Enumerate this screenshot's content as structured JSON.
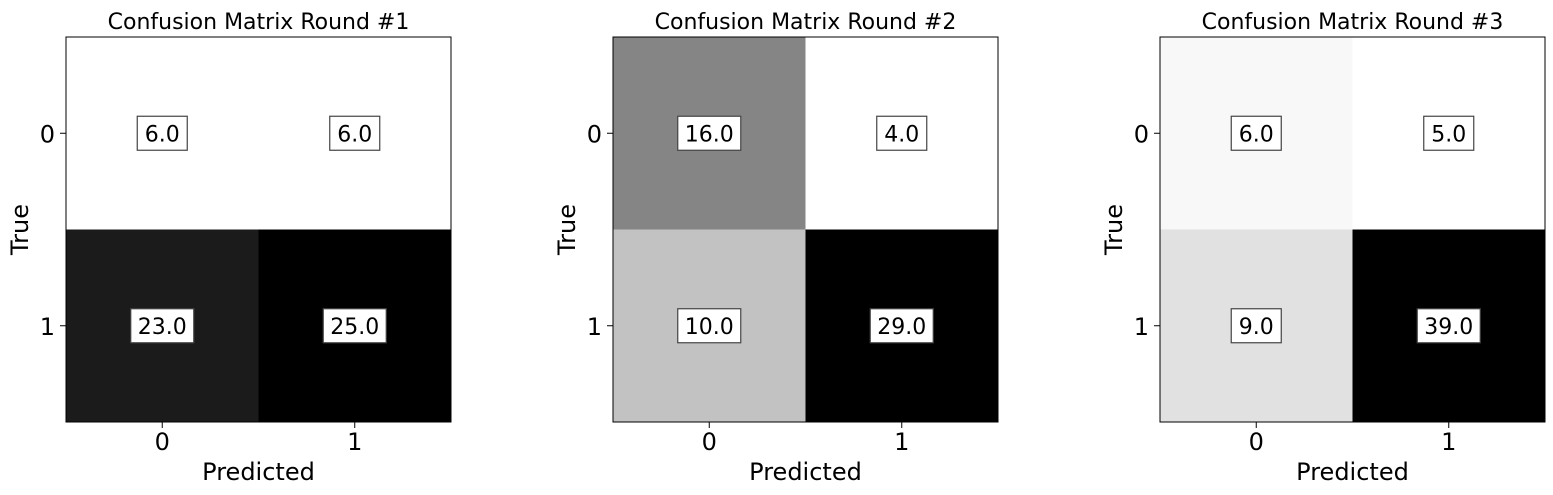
{
  "chart_data": [
    {
      "type": "heatmap",
      "title": "Confusion Matrix Round #1",
      "xlabel": "Predicted",
      "ylabel": "True",
      "x_ticks": [
        "0",
        "1"
      ],
      "y_ticks": [
        "0",
        "1"
      ],
      "values": [
        [
          6.0,
          6.0
        ],
        [
          23.0,
          25.0
        ]
      ],
      "cell_labels": [
        [
          "6.0",
          "6.0"
        ],
        [
          "23.0",
          "25.0"
        ]
      ],
      "colormap": "gray_r"
    },
    {
      "type": "heatmap",
      "title": "Confusion Matrix Round #2",
      "xlabel": "Predicted",
      "ylabel": "True",
      "x_ticks": [
        "0",
        "1"
      ],
      "y_ticks": [
        "0",
        "1"
      ],
      "values": [
        [
          16.0,
          4.0
        ],
        [
          10.0,
          29.0
        ]
      ],
      "cell_labels": [
        [
          "16.0",
          "4.0"
        ],
        [
          "10.0",
          "29.0"
        ]
      ],
      "colormap": "gray_r"
    },
    {
      "type": "heatmap",
      "title": "Confusion Matrix Round #3",
      "xlabel": "Predicted",
      "ylabel": "True",
      "x_ticks": [
        "0",
        "1"
      ],
      "y_ticks": [
        "0",
        "1"
      ],
      "values": [
        [
          6.0,
          5.0
        ],
        [
          9.0,
          39.0
        ]
      ],
      "cell_labels": [
        [
          "6.0",
          "5.0"
        ],
        [
          "9.0",
          "39.0"
        ]
      ],
      "colormap": "gray_r"
    }
  ]
}
